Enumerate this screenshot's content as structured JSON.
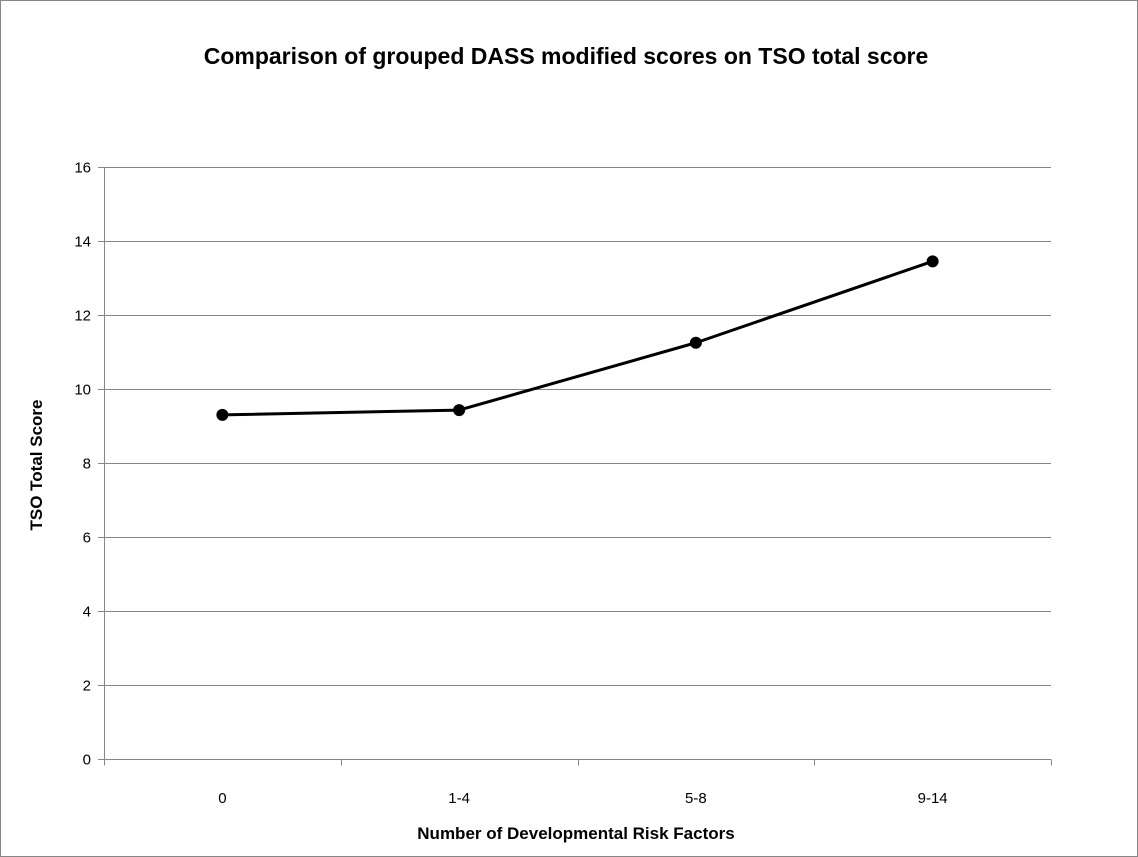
{
  "chart_data": {
    "type": "line",
    "title": "Comparison of grouped DASS modified scores on TSO total score",
    "xlabel": "Number of Developmental Risk Factors",
    "ylabel": "TSO Total Score",
    "categories": [
      "0",
      "1-4",
      "5-8",
      "9-14"
    ],
    "series": [
      {
        "values": [
          9.3,
          9.43,
          11.25,
          13.45
        ],
        "color": "#000000",
        "marker": "circle"
      }
    ],
    "ylim": [
      0,
      16
    ],
    "yticks": [
      0,
      2,
      4,
      6,
      8,
      10,
      12,
      14,
      16
    ],
    "ytick_labels": [
      "0",
      "2",
      "4",
      "6",
      "8",
      "10",
      "12",
      "14",
      "16"
    ],
    "grid": "horizontal",
    "legend": "none"
  }
}
